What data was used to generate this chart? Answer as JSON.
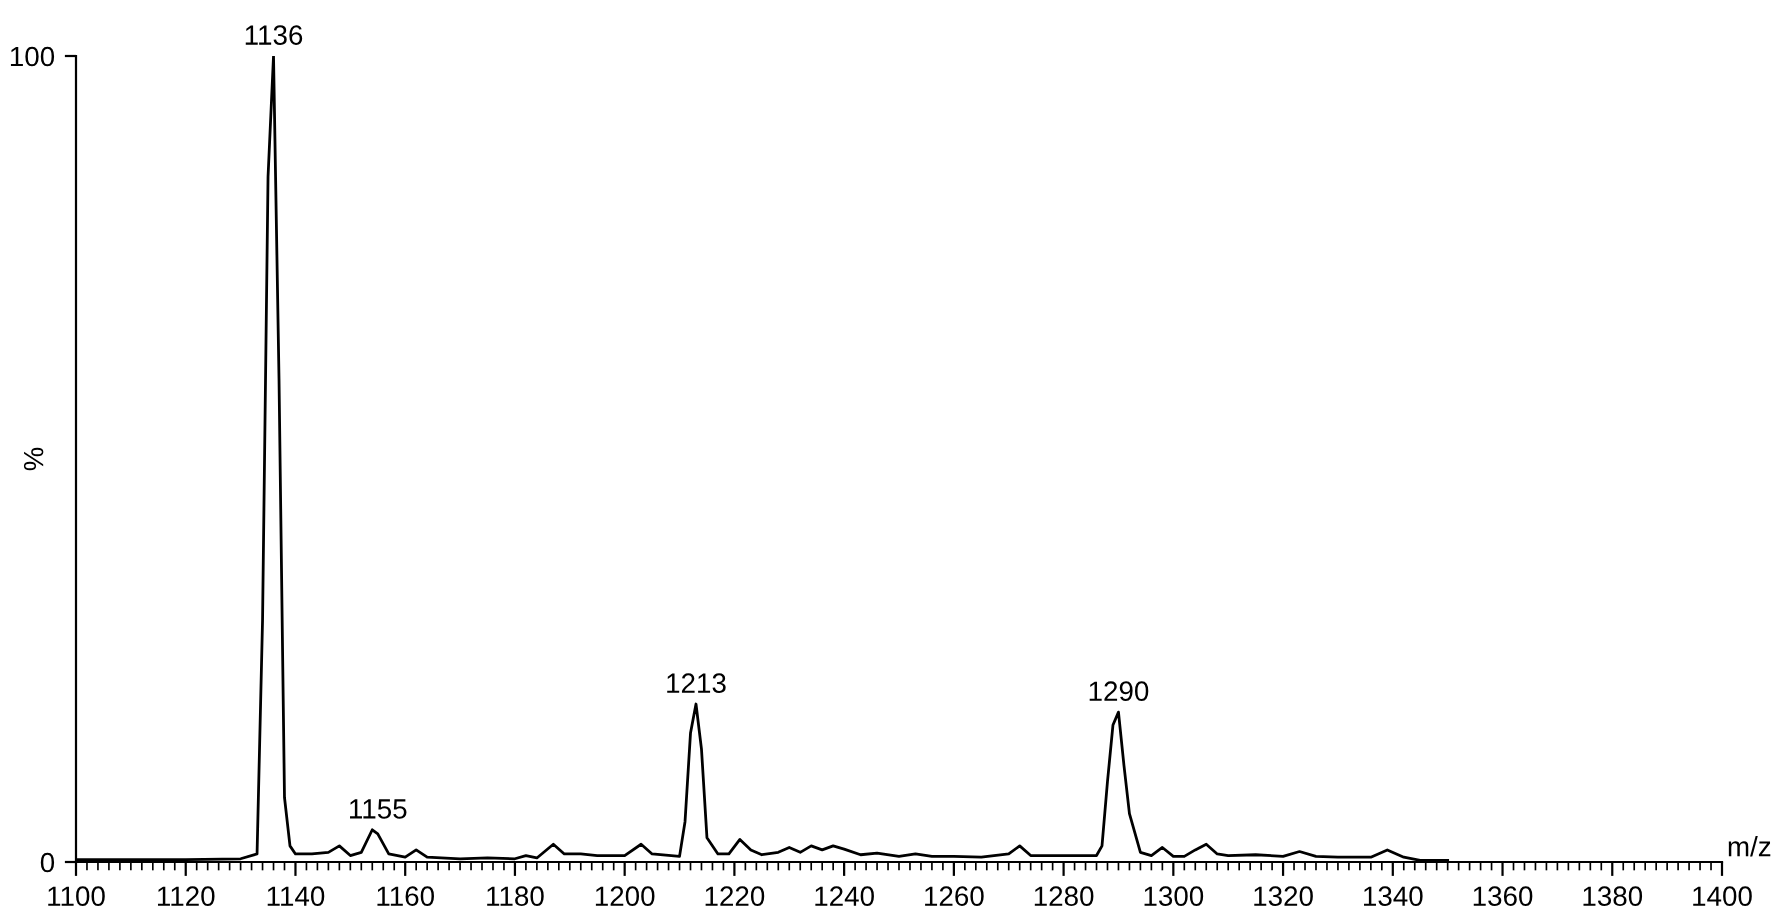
{
  "chart_data": {
    "type": "line",
    "xlabel": "m/z",
    "ylabel": "%",
    "color": "#000000",
    "x": [
      1100,
      1120,
      1130,
      1133,
      1134,
      1135,
      1136,
      1137,
      1138,
      1139,
      1140,
      1143,
      1146,
      1148,
      1150,
      1152,
      1154,
      1155,
      1157,
      1160,
      1162,
      1164,
      1170,
      1175,
      1180,
      1182,
      1184,
      1187,
      1189,
      1192,
      1195,
      1200,
      1203,
      1205,
      1210,
      1211,
      1212,
      1213,
      1214,
      1215,
      1217,
      1219,
      1221,
      1223,
      1225,
      1228,
      1230,
      1232,
      1234,
      1236,
      1238,
      1240,
      1243,
      1246,
      1250,
      1253,
      1256,
      1260,
      1265,
      1270,
      1272,
      1274,
      1280,
      1286,
      1287,
      1288,
      1289,
      1290,
      1291,
      1292,
      1294,
      1296,
      1298,
      1300,
      1302,
      1304,
      1306,
      1308,
      1310,
      1315,
      1320,
      1323,
      1326,
      1330,
      1336,
      1339,
      1342,
      1345,
      1350
    ],
    "values": [
      0.3,
      0.3,
      0.4,
      1,
      30,
      85,
      100,
      60,
      8,
      2,
      1,
      1,
      1.2,
      2,
      0.8,
      1.2,
      4,
      3.5,
      1,
      0.6,
      1.5,
      0.6,
      0.4,
      0.5,
      0.4,
      0.8,
      0.5,
      2.2,
      1,
      1,
      0.8,
      0.8,
      2.2,
      1,
      0.7,
      5,
      16,
      19.6,
      14,
      3,
      1,
      1,
      2.8,
      1.5,
      0.9,
      1.2,
      1.8,
      1.2,
      2,
      1.5,
      2,
      1.6,
      0.9,
      1.1,
      0.7,
      1,
      0.7,
      0.7,
      0.6,
      1,
      2,
      0.8,
      0.8,
      0.8,
      2,
      10,
      17,
      18.6,
      12,
      6,
      1.2,
      0.8,
      1.8,
      0.7,
      0.7,
      1.5,
      2.2,
      1,
      0.8,
      0.9,
      0.7,
      1.3,
      0.7,
      0.6,
      0.6,
      1.5,
      0.6,
      0.2,
      0.2
    ],
    "xlim": [
      1100,
      1400
    ],
    "ylim": [
      0,
      100
    ],
    "xticks": [
      1100,
      1120,
      1140,
      1160,
      1180,
      1200,
      1220,
      1240,
      1260,
      1280,
      1300,
      1320,
      1340,
      1360,
      1380,
      1400
    ],
    "yticks": [
      0,
      100
    ],
    "grid": false,
    "legend": false,
    "marker": "none",
    "line_style": "solid",
    "annotations": [
      {
        "text": "1136",
        "x": 1136,
        "y": 100
      },
      {
        "text": "1155",
        "x": 1155,
        "y": 4
      },
      {
        "text": "1213",
        "x": 1213,
        "y": 19.6
      },
      {
        "text": "1290",
        "x": 1290,
        "y": 18.6
      }
    ]
  }
}
